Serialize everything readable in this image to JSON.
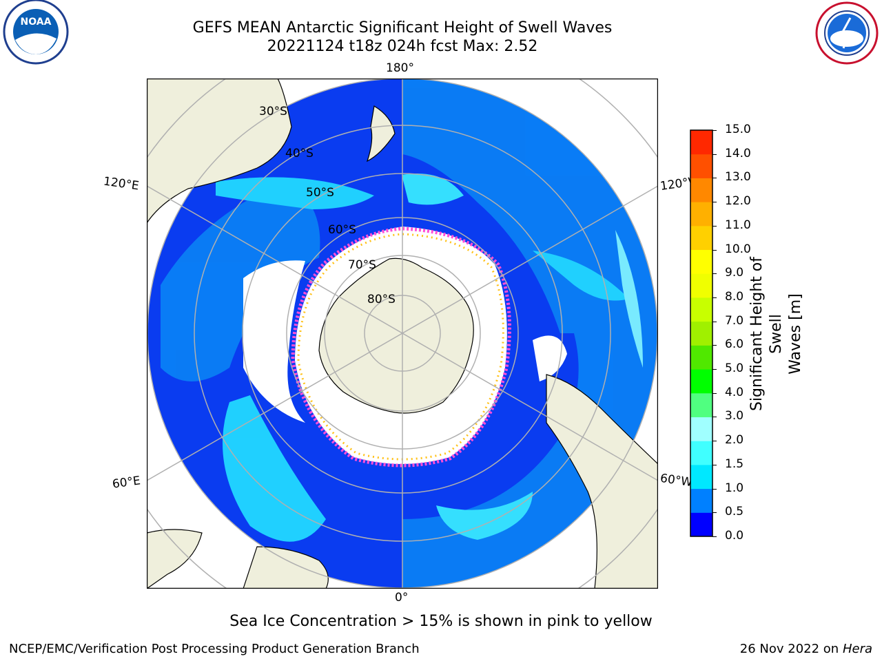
{
  "title_line1": "GEFS MEAN Antarctic Significant Height of Swell Waves",
  "title_line2": "20221124 t18z 024h fcst   Max: 2.52",
  "subtitle": "Sea Ice Concentration > 15% is shown in pink to yellow",
  "credit": "NCEP/EMC/Verification Post Processing Product Generation Branch",
  "date": "26 Nov 2022 on",
  "host": "Hera",
  "logos": {
    "left": "NOAA",
    "right": "NATIONAL WEATHER SERVICE"
  },
  "map": {
    "projection": "south-polar-stereographic",
    "longitude_labels": {
      "top": "180°",
      "bottom": "0°",
      "upper_left": "120°E",
      "upper_right": "120°W",
      "lower_left": "60°E",
      "lower_right": "60°W"
    },
    "latitude_labels": [
      "30°S",
      "40°S",
      "50°S",
      "60°S",
      "70°S",
      "80°S"
    ]
  },
  "colorbar": {
    "title_line1": "Significant Height of Swell",
    "title_line2": "Waves [m]",
    "ticks": [
      "0.0",
      "0.5",
      "1.0",
      "1.5",
      "2.0",
      "3.0",
      "4.0",
      "5.0",
      "6.0",
      "7.0",
      "8.0",
      "9.0",
      "10.0",
      "11.0",
      "12.0",
      "13.0",
      "14.0",
      "15.0"
    ],
    "colors": [
      "#0000ff",
      "#0080ff",
      "#00e8ff",
      "#40ffff",
      "#a0ffff",
      "#50ff80",
      "#00ff00",
      "#50e800",
      "#a0f000",
      "#c8ff00",
      "#f0ff00",
      "#ffff00",
      "#ffd000",
      "#ffb000",
      "#ff8800",
      "#ff5000",
      "#ff2800",
      "#ff0000"
    ]
  }
}
